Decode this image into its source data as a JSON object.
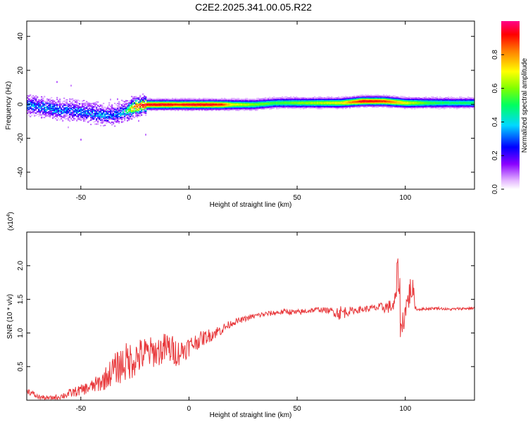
{
  "title": "C2E2.2025.341.00.05.R22",
  "chart_data": [
    {
      "type": "heatmap",
      "ylabel": "Frequency (Hz)",
      "xlabel": "Height of straight line (km)",
      "xlim": [
        -75,
        132
      ],
      "ylim": [
        -50,
        49
      ],
      "x_ticks": [
        -50,
        0,
        50,
        100
      ],
      "y_ticks": [
        -40,
        -20,
        0,
        20,
        40
      ],
      "grid": false,
      "colorbar": {
        "label": "Normalized spectral amplitude",
        "ticks": [
          "0.0",
          "0.2",
          "0.4",
          "0.6",
          "0.8"
        ],
        "tick_values": [
          0.0,
          0.2,
          0.4,
          0.6,
          0.8
        ],
        "range": [
          0,
          1
        ]
      },
      "ridge": {
        "x": [
          -75,
          -70,
          -65,
          -60,
          -55,
          -50,
          -45,
          -40,
          -35,
          -30,
          -25,
          -20,
          -15,
          -10,
          -5,
          0,
          5,
          10,
          15,
          20,
          30,
          40,
          50,
          60,
          70,
          80,
          90,
          100,
          110,
          120,
          132
        ],
        "freq": [
          0,
          -1,
          -2,
          -3,
          -3,
          -4,
          -5,
          -6,
          -6,
          -4,
          -1,
          0,
          0,
          0,
          0,
          0,
          0,
          0,
          0,
          0,
          0,
          1,
          1,
          1,
          1,
          2,
          2,
          1,
          1,
          1,
          1
        ],
        "amplitude": [
          0.35,
          0.3,
          0.35,
          0.3,
          0.3,
          0.35,
          0.3,
          0.35,
          0.3,
          0.4,
          0.9,
          0.95,
          0.95,
          0.95,
          0.9,
          0.95,
          0.95,
          0.95,
          0.9,
          0.7,
          0.6,
          0.55,
          0.6,
          0.65,
          0.7,
          0.95,
          0.9,
          0.7,
          0.55,
          0.5,
          0.5
        ]
      }
    },
    {
      "type": "line",
      "ylabel": "SNR (10 * v/v)",
      "y_multiplier": "(x10",
      "y_multiplier_exp": "4",
      "y_multiplier_close": ")",
      "xlabel": "Height of straight line (km)",
      "xlim": [
        -75,
        132
      ],
      "ylim": [
        0,
        2.5
      ],
      "x_ticks": [
        -50,
        0,
        50,
        100
      ],
      "y_ticks": [
        0.5,
        1.0,
        1.5,
        2.0
      ],
      "y_tick_labels": [
        "0.5",
        "1.0",
        "1.5",
        "2.0"
      ],
      "grid": false,
      "color": "#e8383b",
      "series": [
        {
          "x": [
            -75,
            -70,
            -65,
            -60,
            -55,
            -50,
            -45,
            -40,
            -35,
            -30,
            -25,
            -20,
            -15,
            -10,
            -5,
            0,
            5,
            10,
            15,
            20,
            25,
            30,
            35,
            40,
            45,
            50,
            55,
            60,
            65,
            70,
            75,
            80,
            85,
            90,
            95,
            97,
            98,
            100,
            103,
            105,
            110,
            115,
            120,
            125,
            132
          ],
          "y": [
            0.15,
            0.05,
            0.03,
            0.05,
            0.1,
            0.15,
            0.2,
            0.28,
            0.45,
            0.55,
            0.62,
            0.7,
            0.72,
            0.78,
            0.7,
            0.8,
            0.9,
            0.97,
            1.05,
            1.15,
            1.2,
            1.25,
            1.28,
            1.3,
            1.32,
            1.3,
            1.33,
            1.35,
            1.33,
            1.3,
            1.33,
            1.35,
            1.37,
            1.38,
            1.4,
            2.0,
            1.0,
            1.35,
            1.7,
            1.35,
            1.36,
            1.37,
            1.35,
            1.36,
            1.37
          ],
          "noise": [
            0.05,
            0.04,
            0.03,
            0.04,
            0.07,
            0.08,
            0.1,
            0.15,
            0.22,
            0.3,
            0.28,
            0.25,
            0.22,
            0.25,
            0.2,
            0.15,
            0.12,
            0.1,
            0.08,
            0.05,
            0.04,
            0.04,
            0.04,
            0.04,
            0.04,
            0.05,
            0.04,
            0.04,
            0.04,
            0.12,
            0.05,
            0.05,
            0.05,
            0.08,
            0.12,
            0.45,
            0.3,
            0.15,
            0.25,
            0.02,
            0.02,
            0.02,
            0.02,
            0.02,
            0.02
          ]
        }
      ]
    }
  ]
}
